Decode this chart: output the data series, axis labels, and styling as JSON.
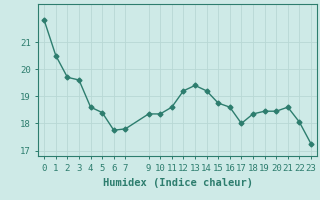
{
  "x": [
    0,
    1,
    2,
    3,
    4,
    5,
    6,
    7,
    9,
    10,
    11,
    12,
    13,
    14,
    15,
    16,
    17,
    18,
    19,
    20,
    21,
    22,
    23
  ],
  "y": [
    21.8,
    20.5,
    19.7,
    19.6,
    18.6,
    18.4,
    17.75,
    17.8,
    18.35,
    18.35,
    18.6,
    19.2,
    19.4,
    19.2,
    18.75,
    18.6,
    18.0,
    18.35,
    18.45,
    18.45,
    18.6,
    18.05,
    17.25
  ],
  "xlabel": "Humidex (Indice chaleur)",
  "xlim": [
    -0.5,
    23.5
  ],
  "ylim": [
    16.8,
    22.4
  ],
  "yticks": [
    17,
    18,
    19,
    20,
    21
  ],
  "xtick_labels": [
    "0",
    "1",
    "2",
    "3",
    "4",
    "5",
    "6",
    "7",
    "9",
    "10",
    "11",
    "12",
    "13",
    "14",
    "15",
    "16",
    "17",
    "18",
    "19",
    "20",
    "21",
    "22",
    "23"
  ],
  "line_color": "#2d7d6e",
  "marker_color": "#2d7d6e",
  "bg_color": "#ceeae7",
  "grid_color": "#b8d8d4",
  "axes_color": "#2d7d6e",
  "label_color": "#2d7d6e",
  "tick_color": "#2d7d6e",
  "label_fontsize": 7.5,
  "tick_fontsize": 6.5
}
